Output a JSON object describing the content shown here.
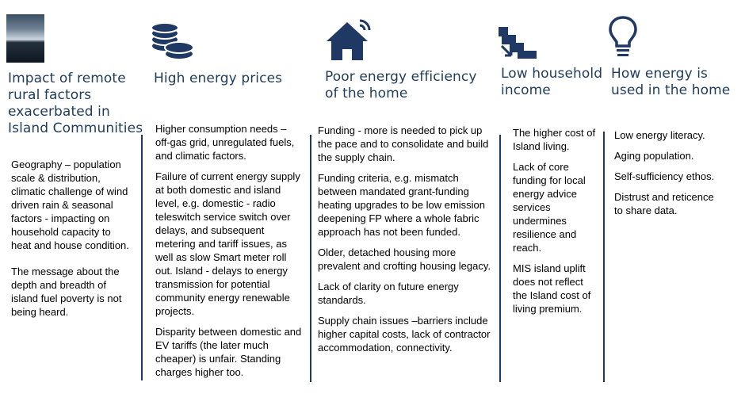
{
  "columns": [
    {
      "icon": "landscape-photo",
      "heading": "Impact of remote rural factors exacerbated in Island Communities",
      "paragraphs": [
        "Geography – population scale & distribution, climatic challenge of wind driven rain & seasonal factors - impacting on household capacity to heat  and house condition.",
        "The message about the depth and breadth of island fuel poverty is not being heard."
      ]
    },
    {
      "icon": "coins-icon",
      "heading": "High energy prices",
      "paragraphs": [
        "Higher consumption needs – off-gas grid, unregulated fuels, and climatic factors.",
        "Failure of current energy supply at both domestic and island level, e.g. domestic  - radio teleswitch service switch over delays, and subsequent metering and tariff issues, as well as slow Smart meter roll out. Island - delays to energy transmission for potential community energy renewable projects.",
        "Disparity between domestic and EV tariffs (the later much cheaper) is unfair. Standing charges higher too."
      ]
    },
    {
      "icon": "smart-home-icon",
      "heading": "Poor energy efficiency of the home",
      "paragraphs": [
        "Funding - more is  needed to pick up the pace and to consolidate and build the supply chain.",
        "Funding criteria, e.g. mismatch between mandated grant-funding heating upgrades to be low emission deepening  FP where a whole fabric approach has not been funded.",
        "Older, detached housing more prevalent and crofting housing legacy.",
        "Lack of clarity on future energy standards.",
        "Supply chain issues –barriers include higher capital costs, lack of contractor accommodation, connectivity."
      ]
    },
    {
      "icon": "stairs-down-icon",
      "heading": "Low household income",
      "paragraphs": [
        "The higher cost of Island living.",
        "Lack of core funding for local energy advice services undermines resilience and reach.",
        "MIS island uplift does not reflect the Island cost of living premium."
      ]
    },
    {
      "icon": "lightbulb-icon",
      "heading": "How energy is used in the home",
      "paragraphs": [
        "Low energy literacy.",
        "Aging population.",
        "Self-sufficiency ethos.",
        "Distrust and reticence to share data."
      ]
    }
  ],
  "colors": {
    "heading": "#1f3c5c",
    "rule": "#1f3864",
    "icon": "#1f3864"
  }
}
